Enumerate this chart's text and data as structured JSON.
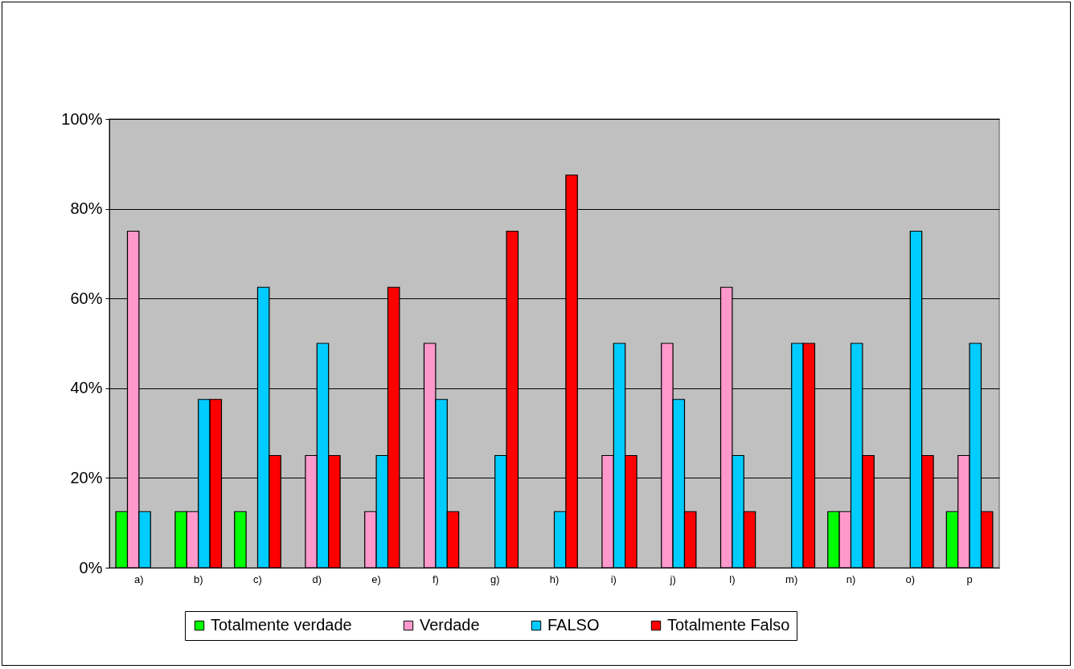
{
  "chart_data": {
    "type": "bar",
    "categories": [
      "a)",
      "b)",
      "c)",
      "d)",
      "e)",
      "f)",
      "g)",
      "h)",
      "i)",
      "j)",
      "l)",
      "m)",
      "n)",
      "o)",
      "p"
    ],
    "series": [
      {
        "name": "Totalmente verdade",
        "color": "#00ff00",
        "values": [
          12.5,
          12.5,
          12.5,
          0,
          0,
          0,
          0,
          0,
          0,
          0,
          0,
          0,
          12.5,
          0,
          12.5
        ]
      },
      {
        "name": "Verdade",
        "color": "#ff99cc",
        "values": [
          75,
          12.5,
          0,
          25,
          12.5,
          50,
          0,
          0,
          25,
          50,
          62.5,
          0,
          12.5,
          0,
          25
        ]
      },
      {
        "name": "FALSO",
        "color": "#00ccff",
        "values": [
          12.5,
          37.5,
          62.5,
          50,
          25,
          37.5,
          25,
          12.5,
          50,
          37.5,
          25,
          50,
          50,
          75,
          50
        ]
      },
      {
        "name": "Totalmente Falso",
        "color": "#ff0000",
        "values": [
          0,
          37.5,
          25,
          25,
          62.5,
          12.5,
          75,
          87.5,
          25,
          12.5,
          12.5,
          50,
          25,
          25,
          12.5
        ]
      }
    ],
    "ylim": [
      0,
      100
    ],
    "yticks": [
      {
        "value": 0,
        "label": "0%"
      },
      {
        "value": 20,
        "label": "20%"
      },
      {
        "value": 40,
        "label": "40%"
      },
      {
        "value": 60,
        "label": "60%"
      },
      {
        "value": 80,
        "label": "80%"
      },
      {
        "value": 100,
        "label": "100%"
      }
    ],
    "grid": "y",
    "legend": "bottom"
  }
}
